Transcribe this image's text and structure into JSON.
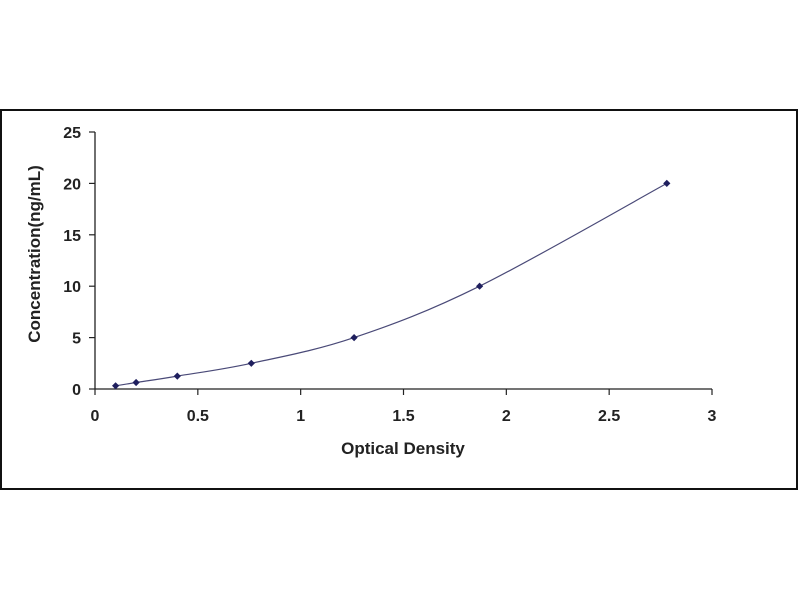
{
  "colors": {
    "border": "#111111",
    "axis": "#222222",
    "curve": "#4a4a78",
    "marker": "#1f1f5e",
    "text": "#222222"
  },
  "chart_data": {
    "type": "scatter",
    "title": "",
    "xlabel": "Optical Density",
    "ylabel": "Concentration(ng/mL)",
    "xlim": [
      0,
      3
    ],
    "ylim": [
      0,
      25
    ],
    "xticks": [
      0,
      0.5,
      1,
      1.5,
      2,
      2.5,
      3
    ],
    "yticks": [
      0,
      5,
      10,
      15,
      20,
      25
    ],
    "xtick_labels": [
      "0",
      "0.5",
      "1",
      "1.5",
      "2",
      "2.5",
      "3"
    ],
    "ytick_labels": [
      "0",
      "5",
      "10",
      "15",
      "20",
      "25"
    ],
    "grid": false,
    "legend": "none",
    "marker": "diamond",
    "trendline": "smooth-curve",
    "series": [
      {
        "x": [
          0.1,
          0.2,
          0.4,
          0.76,
          1.26,
          1.87,
          2.78
        ],
        "y": [
          0.31,
          0.63,
          1.25,
          2.5,
          5,
          10,
          20
        ]
      }
    ]
  }
}
